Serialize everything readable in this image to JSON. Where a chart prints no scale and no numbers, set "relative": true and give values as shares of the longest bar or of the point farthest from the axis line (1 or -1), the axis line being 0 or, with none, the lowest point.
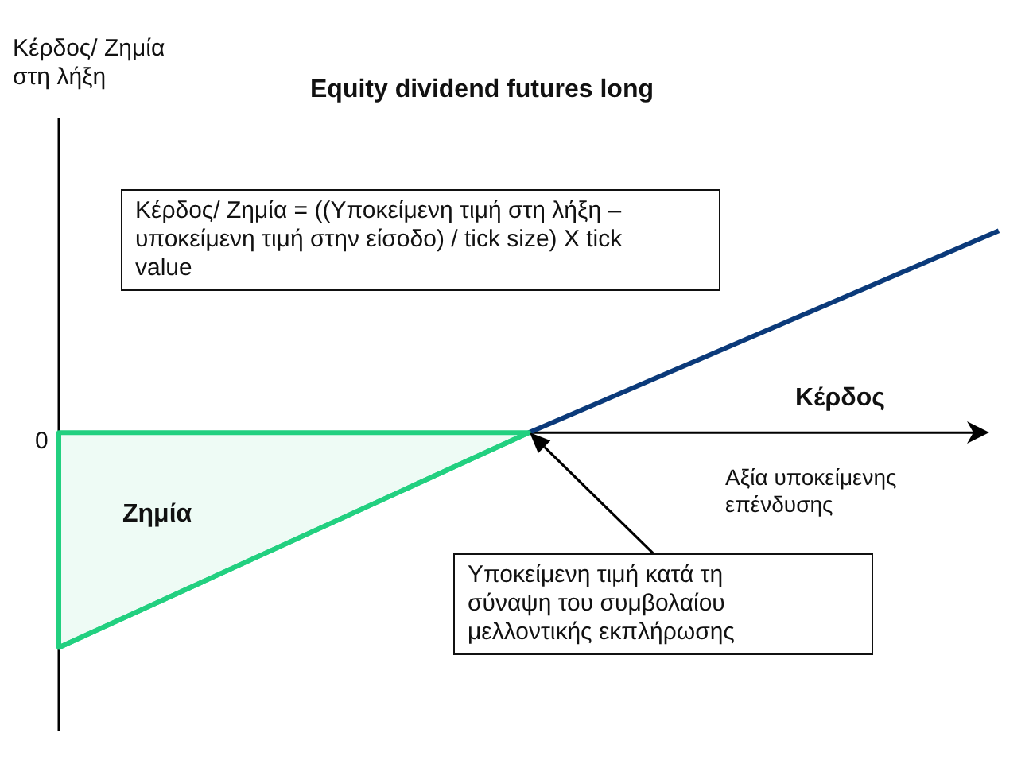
{
  "chart_data": {
    "type": "line",
    "relative": true,
    "title": "Equity dividend futures long",
    "xlabel": "Αξία υποκείμενης επένδυσης",
    "categories": [
      null,
      null,
      null
    ],
    "series": [
      {
        "type": "area",
        "color": "#22d080",
        "values": [
          -1,
          0,
          null
        ]
      },
      {
        "type": "line",
        "color": "#0b3a7a",
        "values": [
          null,
          0,
          0.94
        ]
      }
    ],
    "annotations": [
      "Κέρδος/ Ζημία = ((Υποκείμενη τιμή στη λήξη – υποκείμενη τιμή στην είσοδο) / tick size) X tick value",
      "Κέρδος",
      "Ζημία",
      "Υποκείμενη τιμή κατά τη σύναψη του συμβολαίου μελλοντικής εκπλήρωσης",
      "0",
      "Κέρδος/ Ζημία στη λήξη"
    ],
    "legend": false
  }
}
